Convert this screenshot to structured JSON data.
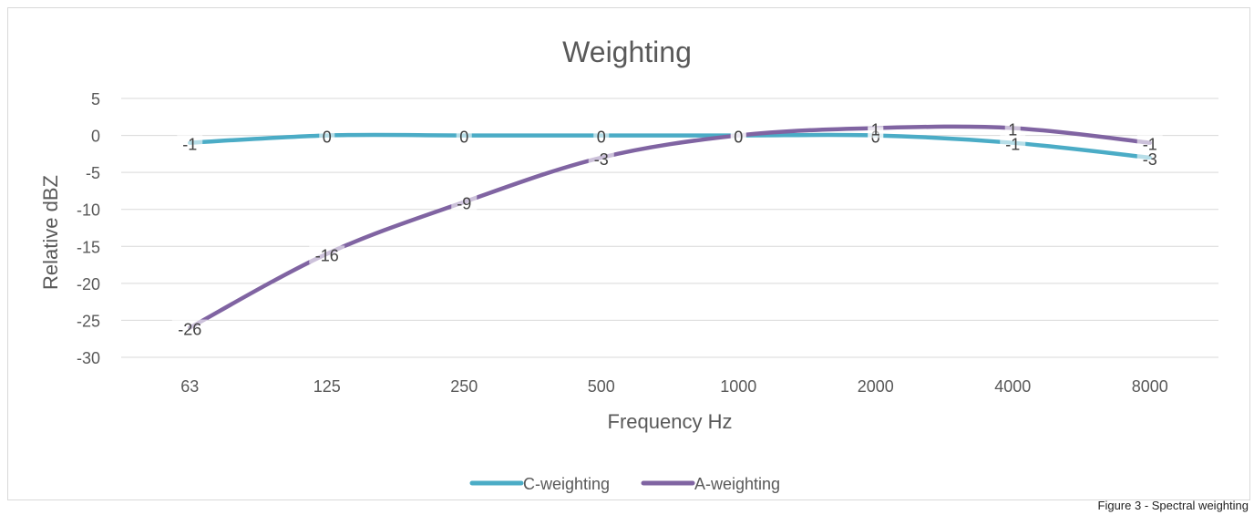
{
  "chart_data": {
    "type": "line",
    "title": "Weighting",
    "xlabel": "Frequency Hz",
    "ylabel": "Relative dBZ",
    "categories": [
      "63",
      "125",
      "250",
      "500",
      "1000",
      "2000",
      "4000",
      "8000"
    ],
    "yticks": [
      5,
      0,
      -5,
      -10,
      -15,
      -20,
      -25,
      -30
    ],
    "ylim": [
      -30,
      5
    ],
    "grid": true,
    "legend": "bottom",
    "series": [
      {
        "name": "C-weighting",
        "color": "#4bacc6",
        "values": [
          -1,
          0,
          0,
          0,
          0,
          0,
          -1,
          -3
        ]
      },
      {
        "name": "A-weighting",
        "color": "#8064a2",
        "values": [
          -26,
          -16,
          -9,
          -3,
          0,
          1,
          1,
          -1
        ]
      }
    ]
  },
  "caption": "Figure 3 - Spectral weighting"
}
